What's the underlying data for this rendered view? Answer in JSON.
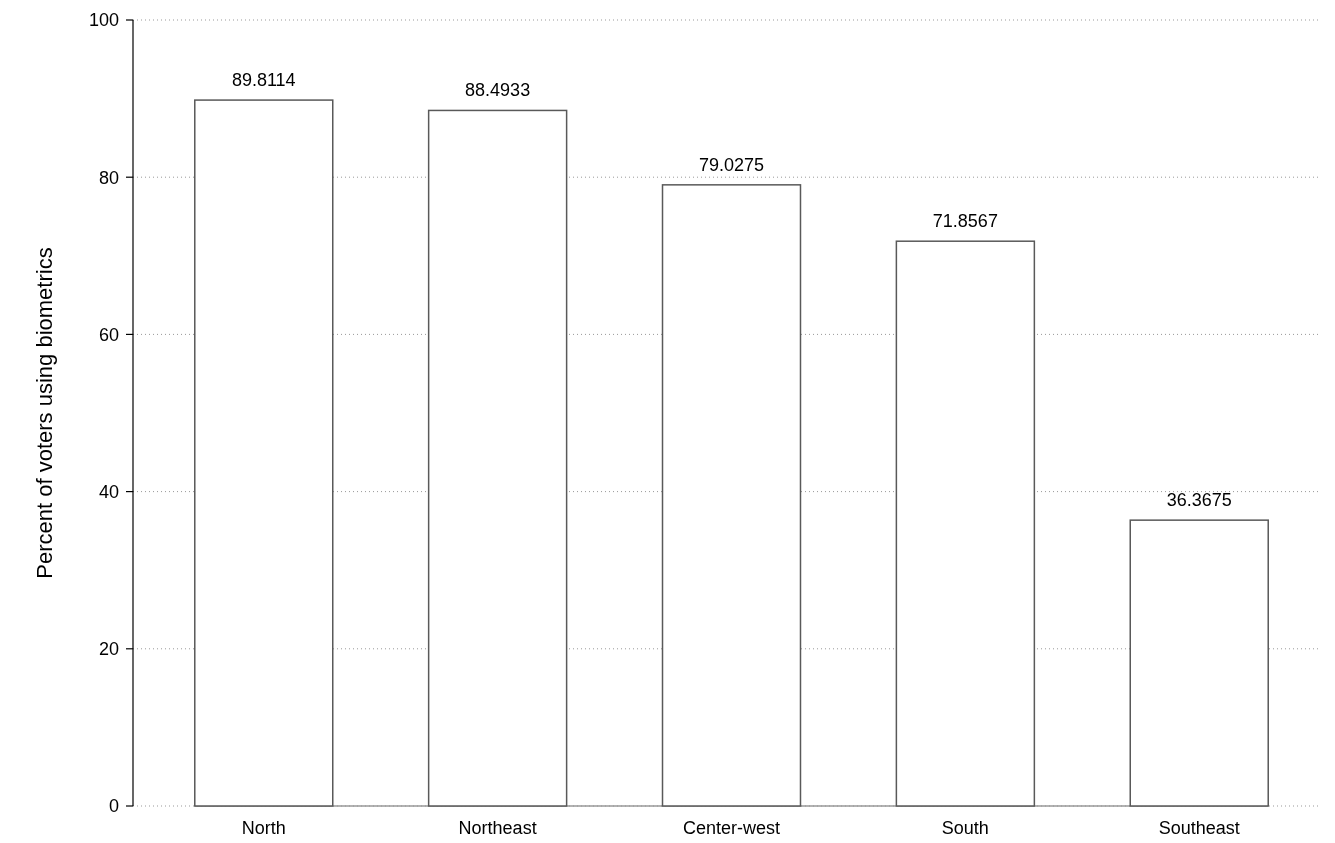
{
  "chart_data": {
    "type": "bar",
    "ylabel": "Percent of voters using biometrics",
    "categories": [
      "North",
      "Northeast",
      "Center-west",
      "South",
      "Southeast"
    ],
    "values": [
      89.8114,
      88.4933,
      79.0275,
      71.8567,
      36.3675
    ],
    "color": "#ffffff",
    "ylim": [
      0,
      100
    ],
    "yticks": [
      0,
      20,
      40,
      60,
      80,
      100
    ],
    "grid": "y",
    "data_labels": true
  }
}
